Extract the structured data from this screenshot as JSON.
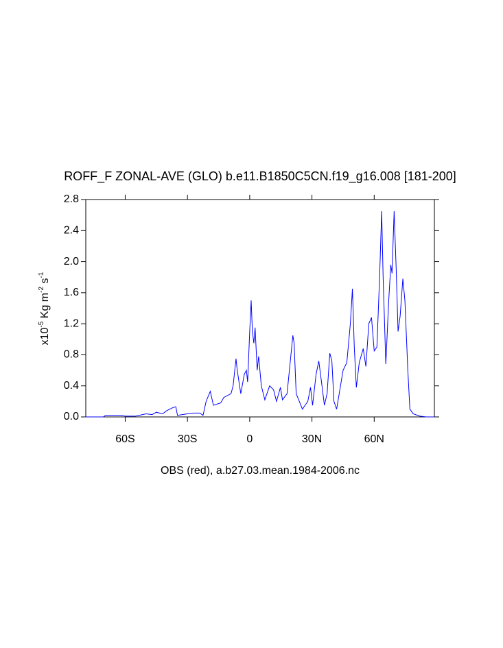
{
  "chart_data": {
    "type": "line",
    "title": "ROFF_F ZONAL-AVE (GLO) b.e11.B1850C5CN.f19_g16.008 [181-200]",
    "x_label": "OBS (red), a.b27.03.mean.1984-2006.nc",
    "y_label_parts": [
      "x10",
      "-5",
      " Kg m",
      "-2",
      " s",
      "-1"
    ],
    "xlim": [
      -79,
      89
    ],
    "ylim": [
      0,
      2.8
    ],
    "xticks": [
      {
        "value": -60,
        "label": "60S"
      },
      {
        "value": -30,
        "label": "30S"
      },
      {
        "value": 0,
        "label": "0"
      },
      {
        "value": 30,
        "label": "30N"
      },
      {
        "value": 60,
        "label": "60N"
      }
    ],
    "yticks": [
      {
        "value": 0,
        "label": "0.0"
      },
      {
        "value": 0.4,
        "label": "0.4"
      },
      {
        "value": 0.8,
        "label": "0.8"
      },
      {
        "value": 1.2,
        "label": "1.2"
      },
      {
        "value": 1.6,
        "label": "1.6"
      },
      {
        "value": 2.0,
        "label": "2.0"
      },
      {
        "value": 2.4,
        "label": "2.4"
      },
      {
        "value": 2.8,
        "label": "2.8"
      }
    ],
    "series": [
      {
        "color": "#0000ff",
        "x": [
          -79,
          -70.5,
          -69.5,
          -62,
          -60,
          -55,
          -50,
          -47,
          -45,
          -42,
          -40,
          -37,
          -35.6,
          -34.8,
          -30,
          -27,
          -24,
          -22.5,
          -21,
          -19,
          -17.5,
          -14,
          -12.5,
          -9,
          -8,
          -6.6,
          -6,
          -4.3,
          -2.6,
          -1.6,
          -1,
          0,
          0.7,
          1.3,
          2,
          2.6,
          3.6,
          4.3,
          5.6,
          7.3,
          9.6,
          11.5,
          12.9,
          14.8,
          15.8,
          18,
          19.5,
          20.8,
          21.4,
          22.4,
          25.4,
          28,
          29.3,
          30.3,
          32,
          33.3,
          34.6,
          36,
          37.3,
          38.6,
          39.6,
          40.6,
          41.9,
          45,
          46.8,
          48.5,
          49.5,
          50.4,
          51.4,
          52.8,
          54.7,
          56,
          57.4,
          58.7,
          60,
          61.3,
          62.6,
          63.6,
          64.3,
          65.6,
          67,
          68,
          68.6,
          69.6,
          70.6,
          71.5,
          72.5,
          73.8,
          74.8,
          76.2,
          77.2,
          78.8,
          82,
          85,
          89
        ],
        "values": [
          0,
          0,
          0.02,
          0.02,
          0.01,
          0.01,
          0.04,
          0.03,
          0.06,
          0.04,
          0.08,
          0.12,
          0.13,
          0.02,
          0.04,
          0.05,
          0.05,
          0.02,
          0.2,
          0.33,
          0.15,
          0.18,
          0.25,
          0.3,
          0.4,
          0.75,
          0.6,
          0.3,
          0.55,
          0.6,
          0.45,
          1.1,
          1.5,
          1.1,
          0.95,
          1.15,
          0.6,
          0.78,
          0.4,
          0.22,
          0.4,
          0.35,
          0.2,
          0.38,
          0.22,
          0.3,
          0.7,
          1.05,
          0.95,
          0.3,
          0.1,
          0.2,
          0.38,
          0.15,
          0.55,
          0.72,
          0.45,
          0.15,
          0.3,
          0.82,
          0.72,
          0.2,
          0.1,
          0.6,
          0.7,
          1.2,
          1.65,
          0.9,
          0.38,
          0.7,
          0.88,
          0.65,
          1.2,
          1.28,
          0.85,
          0.9,
          1.8,
          2.65,
          1.8,
          0.68,
          1.5,
          1.96,
          1.85,
          2.65,
          1.9,
          1.1,
          1.3,
          1.78,
          1.5,
          0.6,
          0.1,
          0.04,
          0.01,
          0,
          0
        ]
      }
    ]
  }
}
